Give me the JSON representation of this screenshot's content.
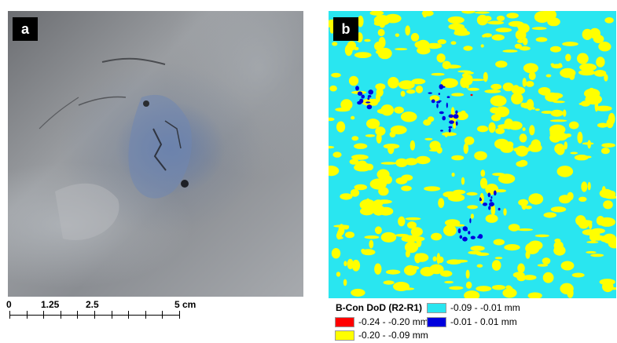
{
  "panel_a": {
    "letter": "a"
  },
  "panel_b": {
    "letter": "b"
  },
  "scale_bar": {
    "labels": [
      "0",
      "1.25",
      "2.5",
      "5 cm"
    ]
  },
  "legend": {
    "title": "B-Con DoD (R2-R1)",
    "items": [
      {
        "label": "-0.09 - -0.01 mm",
        "color": "#29e6f0"
      },
      {
        "label": "-0.24 - -0.20 mm",
        "color": "#ff0000"
      },
      {
        "label": "-0.01 - 0.01 mm",
        "color": "#0000dd"
      },
      {
        "label": "-0.20 - -0.09 mm",
        "color": "#ffff00"
      }
    ]
  }
}
